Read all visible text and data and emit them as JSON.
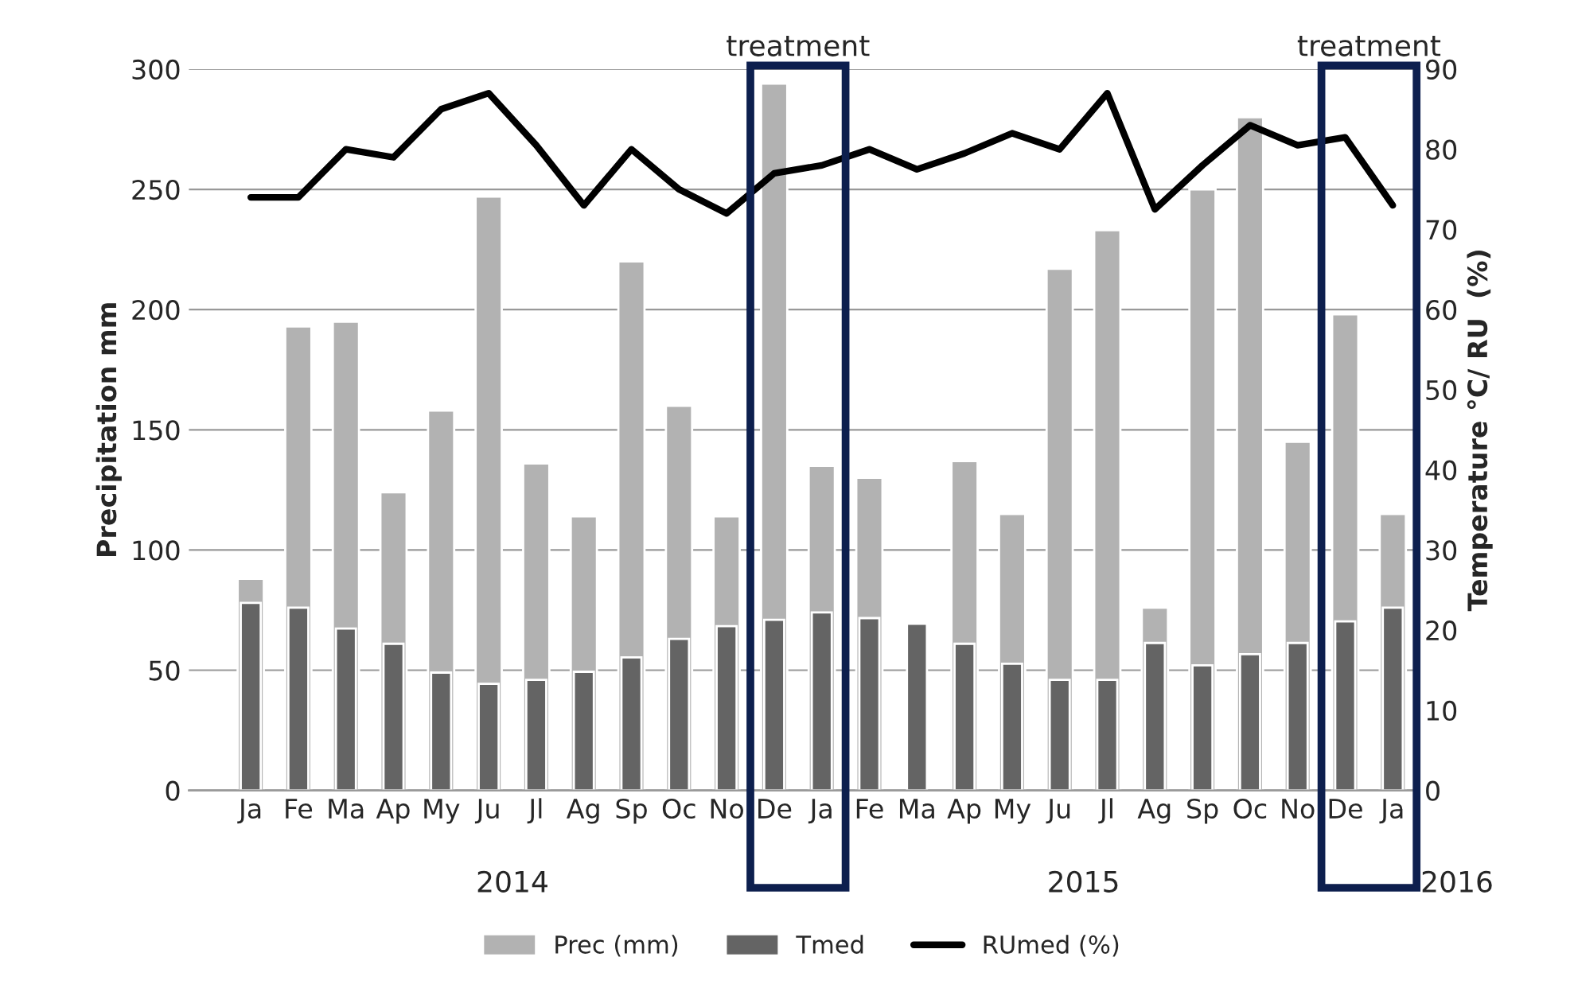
{
  "chart_data": {
    "type": "bar",
    "categories": [
      "Ja",
      "Fe",
      "Ma",
      "Ap",
      "My",
      "Ju",
      "Jl",
      "Ag",
      "Sp",
      "Oc",
      "No",
      "De",
      "Ja",
      "Fe",
      "Ma",
      "Ap",
      "My",
      "Ju",
      "Jl",
      "Ag",
      "Sp",
      "Oc",
      "No",
      "De",
      "Ja"
    ],
    "series": [
      {
        "name": "Prec (mm)",
        "color": "#b2b2b2",
        "values": [
          88,
          193,
          195,
          124,
          158,
          247,
          136,
          114,
          220,
          160,
          114,
          294,
          135,
          130,
          null,
          137,
          115,
          217,
          233,
          76,
          250,
          280,
          145,
          198,
          115
        ]
      },
      {
        "name": "Tmed",
        "color": "#646464",
        "axis": "y2",
        "values": [
          23.4,
          22.8,
          20.2,
          18.3,
          14.7,
          13.3,
          13.8,
          14.8,
          16.6,
          18.9,
          20.5,
          21.3,
          22.2,
          21.5,
          20.8,
          18.3,
          15.8,
          13.8,
          13.8,
          18.4,
          15.6,
          17,
          18.4,
          21.1,
          22.8
        ]
      },
      {
        "name": "RUmed (%)",
        "color": "#000000",
        "type": "line",
        "axis": "y2",
        "values": [
          74,
          74,
          80,
          79,
          85,
          87,
          80.5,
          73,
          80,
          75,
          72,
          77,
          78,
          80,
          77.5,
          79.5,
          82,
          80,
          87,
          72.5,
          78,
          83,
          80.5,
          81.5,
          73
        ]
      }
    ],
    "ylabel": "Precipitation mm",
    "y2label": "Temperature °C/ RU  (%)",
    "ylim": [
      0,
      300
    ],
    "yticks": [
      0,
      50,
      100,
      150,
      200,
      250,
      300
    ],
    "y2lim": [
      0,
      90
    ],
    "y2ticks": [
      0,
      10,
      20,
      30,
      40,
      50,
      60,
      70,
      80,
      90
    ],
    "grid": "y",
    "legend": "bottom",
    "annotations": [
      "treatment",
      "treatment",
      "2014",
      "2015",
      "2016"
    ]
  }
}
